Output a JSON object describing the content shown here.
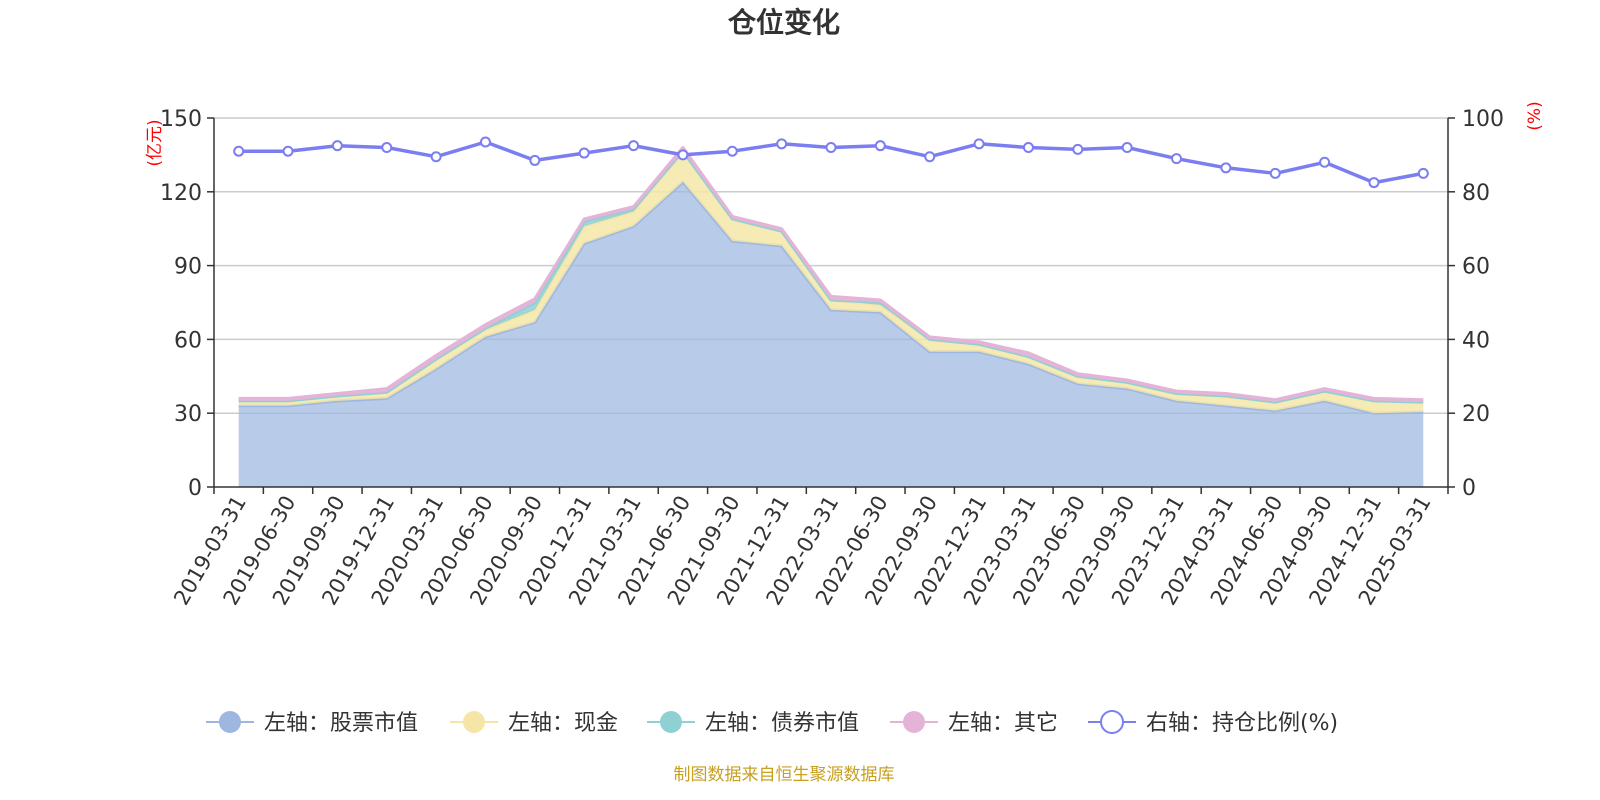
{
  "title": "仓位变化",
  "left_unit": "(亿元)",
  "right_unit": "(%)",
  "source": "制图数据来自恒生聚源数据库",
  "colors": {
    "stock": "#9db7e0",
    "cash": "#f5e6a8",
    "bond": "#8fd0d3",
    "other": "#e6b3d8",
    "ratio": "#7b7ef0",
    "grid": "#cccccc",
    "axis": "#333333",
    "unit": "#ff0000",
    "source": "#c8a020"
  },
  "chart_data": {
    "type": "area",
    "categories": [
      "2019-03-31",
      "2019-06-30",
      "2019-09-30",
      "2019-12-31",
      "2020-03-31",
      "2020-06-30",
      "2020-09-30",
      "2020-12-31",
      "2021-03-31",
      "2021-06-30",
      "2021-09-30",
      "2021-12-31",
      "2022-03-31",
      "2022-06-30",
      "2022-09-30",
      "2022-12-31",
      "2023-03-31",
      "2023-06-30",
      "2023-09-30",
      "2023-12-31",
      "2024-03-31",
      "2024-06-30",
      "2024-09-30",
      "2024-12-31",
      "2025-03-31"
    ],
    "left_axis": {
      "min": 0,
      "max": 150,
      "ticks": [
        0,
        30,
        60,
        90,
        120,
        150
      ]
    },
    "right_axis": {
      "min": 0,
      "max": 100,
      "ticks": [
        0,
        20,
        40,
        60,
        80,
        100
      ]
    },
    "series": [
      {
        "name": "左轴：股票市值",
        "axis": "left",
        "stack": true,
        "values": [
          33,
          33,
          35,
          36,
          48,
          61,
          67,
          99,
          106,
          124,
          100,
          98,
          72,
          71,
          55,
          55,
          50,
          42,
          40,
          35,
          33,
          31,
          35,
          30,
          30.5
        ]
      },
      {
        "name": "左轴：现金",
        "axis": "left",
        "stack": true,
        "values": [
          2,
          2,
          2,
          2.5,
          4,
          3,
          5,
          7,
          6,
          12,
          9,
          6,
          4,
          3,
          5,
          3,
          3,
          3,
          2.5,
          3,
          4,
          3.5,
          4,
          5,
          4
        ]
      },
      {
        "name": "左轴：债券市值",
        "axis": "left",
        "stack": true,
        "values": [
          0,
          0,
          0,
          0,
          0,
          0.5,
          3,
          2,
          1,
          0.5,
          0,
          0,
          0,
          1,
          0,
          0,
          0,
          0,
          0,
          0,
          0,
          0,
          0,
          0,
          0
        ]
      },
      {
        "name": "左轴：其它",
        "axis": "left",
        "stack": true,
        "values": [
          1,
          1,
          1,
          1.5,
          1.5,
          1.5,
          1.5,
          1,
          1,
          1.5,
          1,
          1,
          1.5,
          1,
          1,
          1,
          1.5,
          1,
          1,
          1,
          1,
          1,
          1,
          1,
          1
        ]
      },
      {
        "name": "右轴：持仓比例(%)",
        "axis": "right",
        "line": true,
        "values": [
          91,
          91,
          92.5,
          92,
          89.5,
          93.5,
          88.5,
          90.5,
          92.5,
          90,
          91,
          93,
          92,
          92.5,
          89.5,
          93,
          92,
          91.5,
          92,
          89,
          86.5,
          85,
          88,
          82.5,
          85
        ]
      }
    ],
    "legend_position": "bottom",
    "grid": true
  }
}
